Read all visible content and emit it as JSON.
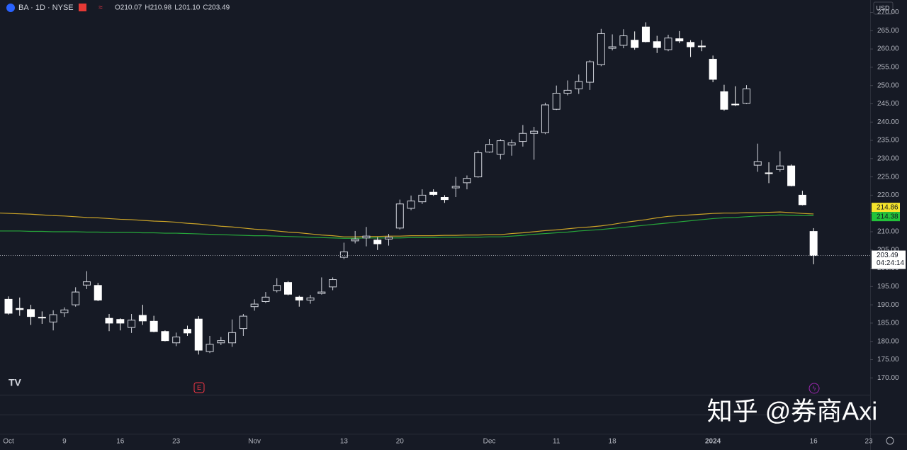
{
  "chart_data": {
    "type": "candlestick",
    "symbol": "BA · 1D · NYSE",
    "ohlc_header": [
      {
        "key": "O",
        "text": "210.07"
      },
      {
        "key": "H",
        "text": "210.98"
      },
      {
        "key": "L",
        "text": "201.10"
      },
      {
        "key": "C",
        "text": "203.49"
      }
    ],
    "currency": "USD",
    "countdown": "04:24:14",
    "earnings_marker": "E",
    "extra_x_label": "23",
    "watermark": "知乎 @券商Axi",
    "categories": [
      "Oct",
      null,
      null,
      null,
      null,
      "9",
      null,
      null,
      null,
      null,
      "16",
      null,
      null,
      null,
      null,
      "23",
      null,
      null,
      null,
      null,
      null,
      null,
      "Nov",
      null,
      null,
      null,
      null,
      null,
      null,
      null,
      "13",
      null,
      null,
      null,
      null,
      "20",
      null,
      null,
      null,
      null,
      null,
      null,
      null,
      "Dec",
      null,
      null,
      null,
      null,
      null,
      "11",
      null,
      null,
      null,
      null,
      "18",
      null,
      null,
      null,
      null,
      null,
      null,
      null,
      null,
      "2024",
      null,
      null,
      null,
      null,
      null,
      null,
      null,
      null,
      "16"
    ],
    "open": [
      191.5,
      189,
      188.7,
      186.6,
      185.3,
      187.8,
      190,
      195.4,
      195.3,
      186.3,
      186,
      183.8,
      187.1,
      185.5,
      182.7,
      179.6,
      183.3,
      186.1,
      177.2,
      179.6,
      179.6,
      183.5,
      189.5,
      190.9,
      193.9,
      196.1,
      192.1,
      191.3,
      193.1,
      194.9,
      203,
      207.5,
      208.3,
      207.7,
      208,
      211,
      216.4,
      218.2,
      220.8,
      219.4,
      222,
      223.4,
      225,
      231.8,
      231.2,
      233.7,
      234.7,
      236.9,
      237.1,
      243.5,
      247.9,
      249.1,
      250.9,
      255.7,
      260.2,
      261,
      262.4,
      266,
      262,
      259.8,
      262.8,
      261.8,
      260.8,
      257.2,
      248.3,
      244.9,
      245.1,
      228.2,
      226.1,
      227,
      228,
      220,
      210.07
    ],
    "high": [
      192.3,
      192,
      190,
      188.2,
      188.5,
      189.3,
      194.8,
      199.2,
      196,
      187.5,
      186.3,
      187.5,
      190,
      187,
      183,
      182.4,
      184.3,
      186.9,
      181.5,
      181.2,
      186,
      187.5,
      191.5,
      193.5,
      197.3,
      196.5,
      192.5,
      192.7,
      197.5,
      197.5,
      207,
      210.2,
      211.3,
      208.5,
      209.4,
      218.8,
      219.9,
      221.6,
      221.6,
      220,
      225,
      225.4,
      232.2,
      235.4,
      235.3,
      235.2,
      239.2,
      238.7,
      245.3,
      250,
      251.4,
      253,
      256.9,
      265.5,
      264,
      265.4,
      264.8,
      267.3,
      263.6,
      263.9,
      264.9,
      262.4,
      262.4,
      258.2,
      250.2,
      249.8,
      250.1,
      234.1,
      229,
      232,
      228.4,
      221.2,
      210.98
    ],
    "low": [
      187.3,
      187,
      184.5,
      184.8,
      183,
      186.7,
      189.5,
      194.3,
      191,
      182.8,
      183,
      182.3,
      184.5,
      182.5,
      180,
      178.7,
      181.5,
      176.4,
      176.8,
      179,
      178.5,
      181.5,
      188.4,
      190.5,
      193.4,
      192.6,
      189.5,
      190.3,
      192.8,
      194,
      202.5,
      206.8,
      206,
      205,
      206.2,
      210.6,
      215.9,
      217.6,
      219.8,
      217.9,
      219.5,
      221.6,
      224.8,
      231.6,
      229.8,
      230.8,
      233.3,
      229.7,
      236.7,
      243.3,
      247.3,
      247.7,
      248.8,
      255.3,
      259.6,
      260.2,
      259.8,
      261.8,
      258.9,
      259.4,
      261.6,
      257.8,
      259.4,
      250.9,
      243.1,
      244.4,
      244.9,
      226.4,
      223.3,
      226.4,
      222.4,
      217.2,
      201.1
    ],
    "close": [
      187.7,
      188.7,
      186.8,
      186.4,
      187.3,
      188.6,
      193.5,
      196.3,
      191.3,
      185,
      185,
      185.8,
      185.6,
      182.7,
      180.2,
      181.2,
      182.3,
      177.6,
      179.2,
      180.2,
      182.4,
      186.9,
      190.2,
      192.1,
      195.3,
      192.9,
      191.3,
      191.9,
      193.5,
      196.9,
      204.5,
      208,
      208.8,
      206.7,
      208.5,
      217.6,
      218.4,
      220,
      220.2,
      218.8,
      222.4,
      224.6,
      231.6,
      233.9,
      234.9,
      234.3,
      236.9,
      237.5,
      244.7,
      247.9,
      248.7,
      251.1,
      256.5,
      264.2,
      260.6,
      263.6,
      260.4,
      262,
      260.4,
      263,
      262.2,
      260.6,
      260.6,
      251.7,
      243.5,
      244.7,
      249.1,
      229.2,
      225.9,
      228,
      222.6,
      217.4,
      203.49
    ],
    "series": [
      {
        "color": "#26a63a",
        "tag_color": "#22c33a",
        "values": [
          210.2,
          210.2,
          210.1,
          210.1,
          210.0,
          210.0,
          210.0,
          209.9,
          209.9,
          209.8,
          209.8,
          209.8,
          209.7,
          209.7,
          209.6,
          209.6,
          209.5,
          209.4,
          209.3,
          209.2,
          209.1,
          209.0,
          208.9,
          208.9,
          208.8,
          208.7,
          208.6,
          208.5,
          208.4,
          208.3,
          208.2,
          208.2,
          208.3,
          208.3,
          208.3,
          208.3,
          208.4,
          208.4,
          208.4,
          208.5,
          208.5,
          208.5,
          208.5,
          208.6,
          208.6,
          208.8,
          209.0,
          209.3,
          209.5,
          209.7,
          209.9,
          210.2,
          210.4,
          210.6,
          210.9,
          211.2,
          211.5,
          211.8,
          212.1,
          212.4,
          212.7,
          213.0,
          213.3,
          213.6,
          213.8,
          213.9,
          214.1,
          214.3,
          214.4,
          214.6,
          214.5,
          214.4,
          214.38
        ]
      },
      {
        "color": "#c9a227",
        "tag_color": "#f5e42b",
        "values": [
          215.1,
          214.9,
          214.8,
          214.6,
          214.4,
          214.3,
          214.1,
          213.9,
          213.8,
          213.6,
          213.4,
          213.3,
          213.1,
          212.9,
          212.8,
          212.6,
          212.3,
          212.1,
          211.8,
          211.5,
          211.3,
          211.0,
          210.7,
          210.5,
          210.2,
          209.9,
          209.7,
          209.4,
          209.1,
          208.9,
          208.6,
          208.6,
          208.7,
          208.7,
          208.8,
          208.8,
          208.9,
          208.9,
          208.9,
          209.0,
          209.0,
          209.1,
          209.1,
          209.2,
          209.2,
          209.5,
          209.7,
          210.0,
          210.3,
          210.5,
          210.8,
          211.1,
          211.3,
          211.6,
          212.0,
          212.5,
          212.9,
          213.3,
          213.8,
          214.2,
          214.4,
          214.6,
          214.8,
          215.0,
          215.1,
          215.1,
          215.2,
          215.2,
          215.3,
          215.4,
          215.2,
          215.0,
          214.86
        ]
      }
    ],
    "up_color": "#d1d4dc",
    "down_color": "#ffffff",
    "ylim": [
      165.4,
      273.4
    ],
    "yticks": [
      {
        "value": 170,
        "label": "170.00"
      },
      {
        "value": 175,
        "label": "175.00"
      },
      {
        "value": 180,
        "label": "180.00"
      },
      {
        "value": 185,
        "label": "185.00"
      },
      {
        "value": 190,
        "label": "190.00"
      },
      {
        "value": 195,
        "label": "195.00"
      },
      {
        "value": 200,
        "label": "200.00"
      },
      {
        "value": 205,
        "label": "205.00"
      },
      {
        "value": 210,
        "label": "210.00"
      },
      {
        "value": 215,
        "label": "215.00"
      },
      {
        "value": 220,
        "label": "220.00"
      },
      {
        "value": 225,
        "label": "225.00"
      },
      {
        "value": 230,
        "label": "230.00"
      },
      {
        "value": 235,
        "label": "235.00"
      },
      {
        "value": 240,
        "label": "240.00"
      },
      {
        "value": 245,
        "label": "245.00"
      },
      {
        "value": 250,
        "label": "250.00"
      },
      {
        "value": 255,
        "label": "255.00"
      },
      {
        "value": 260,
        "label": "260.00"
      },
      {
        "value": 265,
        "label": "265.00"
      },
      {
        "value": 270,
        "label": "270.00"
      }
    ],
    "grid": false
  }
}
